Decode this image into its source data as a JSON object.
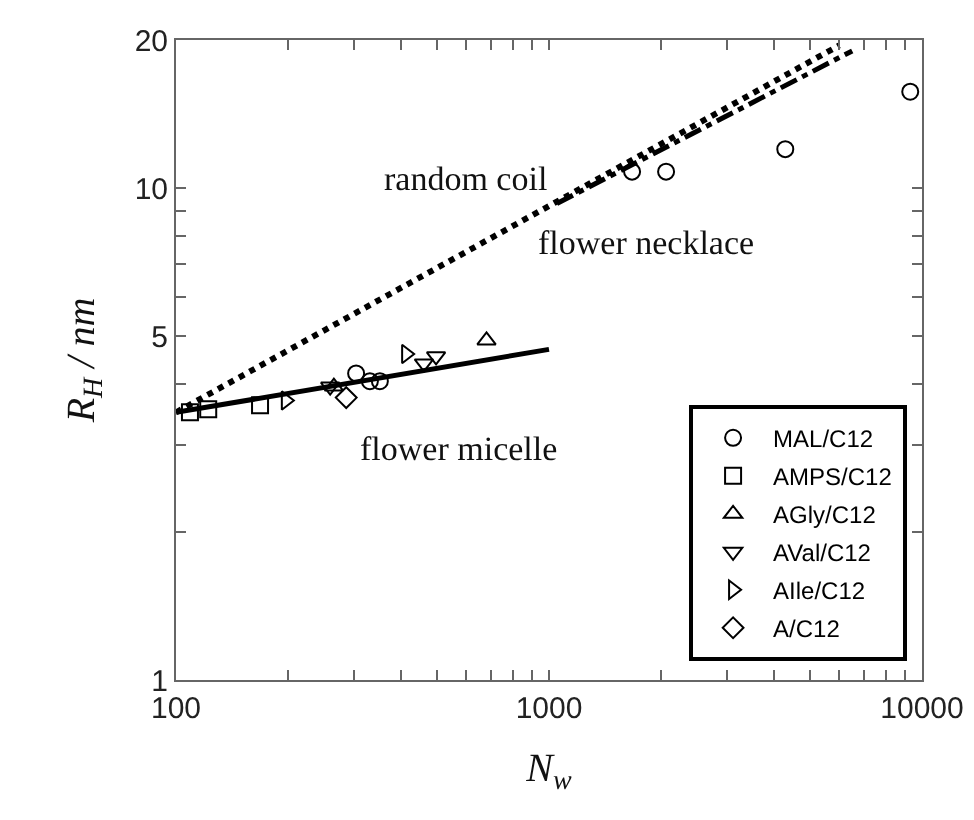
{
  "chart_data": {
    "type": "scatter",
    "xlabel": "N$_{w}$",
    "ylabel": "R$_{H}$ / nm",
    "log": "xy",
    "grid": false,
    "legend": "bottom right",
    "xlim": [
      100,
      10000
    ],
    "ylim": [
      1,
      20
    ],
    "xticks": [
      100,
      {
        "value": 200,
        "label": null
      },
      {
        "value": 300,
        "label": null
      },
      {
        "value": 400,
        "label": null
      },
      {
        "value": 500,
        "label": null
      },
      {
        "value": 600,
        "label": null
      },
      {
        "value": 700,
        "label": null
      },
      {
        "value": 800,
        "label": null
      },
      {
        "value": 900,
        "label": null
      },
      1000,
      {
        "value": 2000,
        "label": null
      },
      {
        "value": 3000,
        "label": null
      },
      {
        "value": 4000,
        "label": null
      },
      {
        "value": 5000,
        "label": null
      },
      {
        "value": 6000,
        "label": null
      },
      {
        "value": 7000,
        "label": null
      },
      {
        "value": 8000,
        "label": null
      },
      {
        "value": 9000,
        "label": null
      },
      10000
    ],
    "yticks": [
      1,
      {
        "value": 2,
        "label": null
      },
      {
        "value": 3,
        "label": null
      },
      {
        "value": 4,
        "label": null
      },
      5,
      {
        "value": 6,
        "label": null
      },
      {
        "value": 7,
        "label": null
      },
      {
        "value": 8,
        "label": null
      },
      {
        "value": 9,
        "label": null
      },
      10,
      20
    ],
    "annotations": [
      "random coil",
      "flower micelle",
      "flower necklace"
    ],
    "series": [
      {
        "type": "line",
        "line_style": "solid",
        "marker": "none",
        "color": "#000000",
        "x": [
          100,
          1000
        ],
        "values": [
          3.5,
          4.7
        ]
      },
      {
        "type": "line",
        "line_style": "dotted",
        "marker": "none",
        "color": "#000000",
        "x": [
          100,
          6000
        ],
        "values": [
          3.5,
          19.5
        ]
      },
      {
        "type": "line",
        "line_style": "dashdot",
        "marker": "none",
        "color": "#000000",
        "x": [
          1050,
          6500
        ],
        "values": [
          9.3,
          19
        ]
      },
      {
        "name": "MAL/C12",
        "marker": "circle",
        "color": "#000000",
        "x": [
          304,
          331,
          352,
          1670,
          2060,
          4300,
          9300
        ],
        "values": [
          4.2,
          4.05,
          4.05,
          10.8,
          10.8,
          12,
          15.7
        ]
      },
      {
        "name": "AMPS/C12",
        "marker": "square",
        "color": "#000000",
        "x": [
          109,
          122,
          168
        ],
        "values": [
          3.5,
          3.55,
          3.62
        ]
      },
      {
        "name": "AGly/C12",
        "marker": "triangle",
        "color": "#000000",
        "x": [
          265,
          680
        ],
        "values": [
          3.95,
          4.9
        ]
      },
      {
        "name": "AVal/C12",
        "marker": "triangle-down",
        "color": "#000000",
        "x": [
          259,
          462,
          498
        ],
        "values": [
          3.95,
          4.4,
          4.55
        ]
      },
      {
        "name": "AIle/C12",
        "marker": "triangle-right",
        "color": "#000000",
        "x": [
          197,
          414
        ],
        "values": [
          3.7,
          4.6
        ]
      },
      {
        "name": "A/C12",
        "marker": "diamond",
        "color": "#000000",
        "x": [
          286
        ],
        "values": [
          3.75
        ]
      }
    ]
  }
}
